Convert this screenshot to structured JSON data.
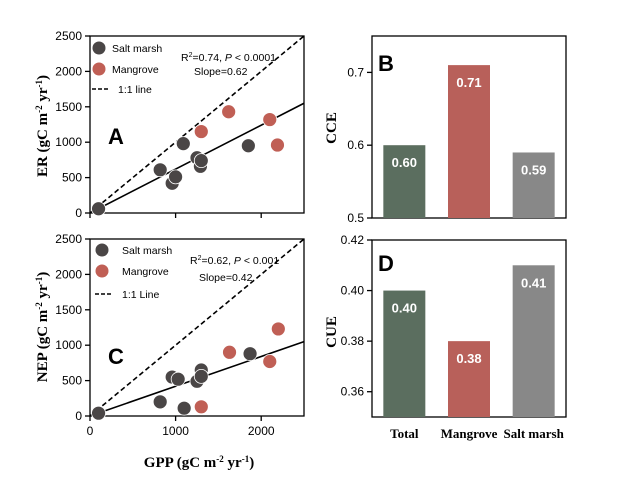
{
  "colors": {
    "salt_marsh_point": "#4a4646",
    "mangrove_point": "#c05f55",
    "bar_total": "#5b6e5f",
    "bar_mangrove": "#b8605a",
    "bar_salt_marsh": "#888888"
  },
  "legend": {
    "salt_marsh": "Salt marsh",
    "mangrove": "Mangrove"
  },
  "shared_x_label": {
    "main": "GPP (gC m",
    "sup1": "-2",
    "mid": " yr",
    "sup2": "-1",
    "end": ")"
  },
  "chart_data": [
    {
      "panel": "A",
      "type": "scatter",
      "xlim": [
        0,
        2500
      ],
      "ylim": [
        0,
        2500
      ],
      "x_ticks": [
        "0",
        "1000",
        "2000"
      ],
      "y_ticks": [
        "0",
        "500",
        "1000",
        "1500",
        "2000",
        "2500"
      ],
      "ylabel": {
        "main": "ER (gC m",
        "sup1": "-2",
        "mid": " yr",
        "sup2": "-1",
        "end": ")"
      },
      "line_legend": "1:1 line",
      "stats": {
        "r2_pre": "R",
        "r2_sup": "2",
        "r2_post": "=0.74, ",
        "p_italic": "P",
        "p_post": " < 0.0001",
        "slope": "Slope=0.62"
      },
      "fit": {
        "slope": 0.62,
        "intercept": 0
      },
      "series": [
        {
          "name": "Salt marsh",
          "points": [
            [
              100,
              60
            ],
            [
              820,
              610
            ],
            [
              960,
              420
            ],
            [
              1000,
              510
            ],
            [
              1090,
              980
            ],
            [
              1250,
              780
            ],
            [
              1290,
              660
            ],
            [
              1300,
              740
            ],
            [
              1850,
              950
            ]
          ]
        },
        {
          "name": "Mangrove",
          "points": [
            [
              1300,
              1150
            ],
            [
              1620,
              1430
            ],
            [
              2100,
              1320
            ],
            [
              2190,
              960
            ]
          ]
        }
      ]
    },
    {
      "panel": "C",
      "type": "scatter",
      "xlim": [
        0,
        2500
      ],
      "ylim": [
        0,
        2500
      ],
      "x_ticks": [
        "0",
        "1000",
        "2000"
      ],
      "y_ticks": [
        "0",
        "500",
        "1000",
        "1500",
        "2000",
        "2500"
      ],
      "ylabel": {
        "main": "NEP (gC m",
        "sup1": "-2",
        "mid": " yr",
        "sup2": "-1",
        "end": ")"
      },
      "line_legend": "1:1 Line",
      "stats": {
        "r2_pre": "R",
        "r2_sup": "2",
        "r2_post": "=0.62, ",
        "p_italic": "P",
        "p_post": " < 0.001",
        "slope": "Slope=0.42"
      },
      "fit": {
        "slope": 0.42,
        "intercept": 0
      },
      "series": [
        {
          "name": "Salt marsh",
          "points": [
            [
              100,
              40
            ],
            [
              820,
              200
            ],
            [
              960,
              550
            ],
            [
              1030,
              520
            ],
            [
              1100,
              110
            ],
            [
              1250,
              490
            ],
            [
              1300,
              650
            ],
            [
              1300,
              560
            ],
            [
              1870,
              880
            ]
          ]
        },
        {
          "name": "Mangrove",
          "points": [
            [
              1300,
              130
            ],
            [
              1630,
              900
            ],
            [
              2100,
              770
            ],
            [
              2200,
              1230
            ]
          ]
        }
      ]
    },
    {
      "panel": "B",
      "type": "bar",
      "ylabel": "CCE",
      "ylim": [
        0.5,
        0.75
      ],
      "y_ticks": [
        "0.5",
        "0.6",
        "0.7"
      ],
      "categories": [
        "Total",
        "Mangrove",
        "Salt marsh"
      ],
      "values": [
        0.6,
        0.71,
        0.59
      ],
      "labels": [
        "0.60",
        "0.71",
        "0.59"
      ]
    },
    {
      "panel": "D",
      "type": "bar",
      "ylabel": "CUE",
      "ylim": [
        0.35,
        0.42
      ],
      "y_ticks": [
        "0.36",
        "0.38",
        "0.40",
        "0.42"
      ],
      "categories": [
        "Total",
        "Mangrove",
        "Salt marsh"
      ],
      "values": [
        0.4,
        0.38,
        0.41
      ],
      "labels": [
        "0.40",
        "0.38",
        "0.41"
      ]
    }
  ]
}
